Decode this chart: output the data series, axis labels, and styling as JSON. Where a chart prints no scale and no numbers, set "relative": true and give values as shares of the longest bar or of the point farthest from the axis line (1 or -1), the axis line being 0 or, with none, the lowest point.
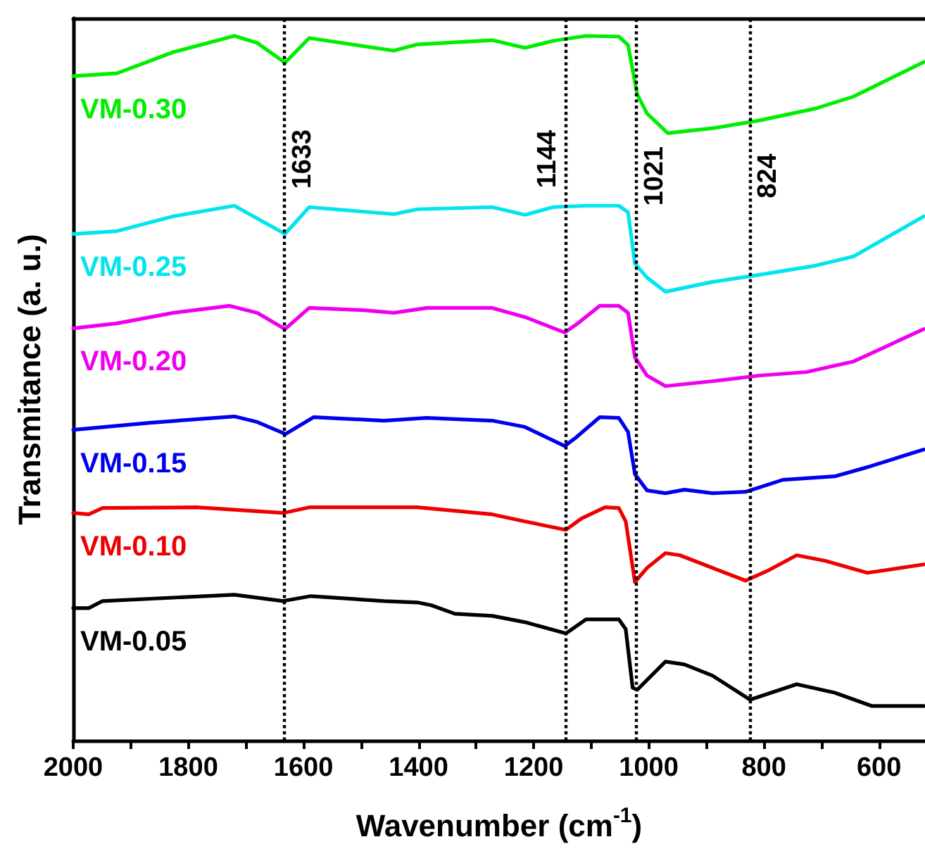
{
  "chart_data": {
    "type": "line",
    "xlabel": "Wavenumber (cm$^{-1}$)",
    "ylabel": "Transmitance (a. u.)",
    "relative": true,
    "xlim": [
      2000,
      520
    ],
    "xticks": [
      2000,
      {
        "value": 1900,
        "label": null
      },
      1800,
      {
        "value": 1700,
        "label": null
      },
      1600,
      {
        "value": 1500,
        "label": null
      },
      1400,
      {
        "value": 1300,
        "label": null
      },
      1200,
      {
        "value": 1100,
        "label": null
      },
      1000,
      {
        "value": 900,
        "label": null
      },
      800,
      {
        "value": 700,
        "label": null
      },
      600
    ],
    "grid": false,
    "legend": false,
    "marker": "none",
    "line_style": "solid",
    "series": [
      {
        "name": "VM-0.30",
        "color": "#00ee00",
        "x": [
          2000,
          1924,
          1826,
          1720,
          1680,
          1632,
          1590,
          1541,
          1443,
          1402,
          1272,
          1215,
          1166,
          1109,
          1052,
          1036,
          1020,
          1003,
          967,
          889,
          808,
          710,
          644,
          522
        ],
        "values": [
          0.943,
          0.947,
          0.977,
          1.0,
          0.99,
          0.962,
          0.997,
          0.991,
          0.979,
          0.988,
          0.994,
          0.983,
          0.993,
          1.0,
          0.999,
          0.987,
          0.917,
          0.89,
          0.862,
          0.869,
          0.88,
          0.897,
          0.914,
          0.963
        ]
      },
      {
        "name": "VM-0.25",
        "color": "#00e5ee",
        "x": [
          2000,
          1924,
          1826,
          1720,
          1632,
          1590,
          1443,
          1402,
          1272,
          1215,
          1166,
          1109,
          1052,
          1036,
          1024,
          1003,
          971,
          889,
          808,
          710,
          644,
          522
        ],
        "values": [
          0.719,
          0.723,
          0.744,
          0.759,
          0.719,
          0.757,
          0.747,
          0.754,
          0.757,
          0.746,
          0.757,
          0.759,
          0.759,
          0.75,
          0.677,
          0.657,
          0.637,
          0.651,
          0.661,
          0.674,
          0.687,
          0.744
        ]
      },
      {
        "name": "VM-0.20",
        "color": "#ee00ee",
        "x": [
          2000,
          1924,
          1826,
          1728,
          1680,
          1632,
          1590,
          1500,
          1443,
          1385,
          1272,
          1215,
          1146,
          1125,
          1085,
          1052,
          1036,
          1024,
          1003,
          971,
          889,
          808,
          726,
          644,
          522
        ],
        "values": [
          0.585,
          0.592,
          0.607,
          0.617,
          0.607,
          0.584,
          0.614,
          0.611,
          0.607,
          0.614,
          0.614,
          0.601,
          0.579,
          0.591,
          0.617,
          0.617,
          0.607,
          0.544,
          0.518,
          0.503,
          0.51,
          0.518,
          0.523,
          0.538,
          0.584
        ]
      },
      {
        "name": "VM-0.15",
        "color": "#0000ee",
        "x": [
          2000,
          1867,
          1720,
          1680,
          1631,
          1582,
          1460,
          1386,
          1272,
          1215,
          1146,
          1125,
          1085,
          1052,
          1036,
          1024,
          1003,
          971,
          938,
          889,
          832,
          767,
          677,
          620,
          522
        ],
        "values": [
          0.441,
          0.451,
          0.46,
          0.452,
          0.435,
          0.459,
          0.454,
          0.458,
          0.454,
          0.445,
          0.418,
          0.431,
          0.459,
          0.458,
          0.438,
          0.378,
          0.355,
          0.351,
          0.356,
          0.351,
          0.353,
          0.37,
          0.375,
          0.388,
          0.413
        ]
      },
      {
        "name": "VM-0.10",
        "color": "#ee0000",
        "x": [
          2000,
          1973,
          1949,
          1786,
          1635,
          1590,
          1402,
          1272,
          1215,
          1144,
          1117,
          1076,
          1052,
          1040,
          1024,
          1003,
          971,
          946,
          889,
          832,
          791,
          743,
          693,
          620,
          522
        ],
        "values": [
          0.323,
          0.321,
          0.33,
          0.331,
          0.323,
          0.331,
          0.331,
          0.321,
          0.311,
          0.299,
          0.315,
          0.331,
          0.33,
          0.311,
          0.225,
          0.245,
          0.266,
          0.263,
          0.245,
          0.227,
          0.242,
          0.263,
          0.255,
          0.238,
          0.25
        ]
      },
      {
        "name": "VM-0.05",
        "color": "#000000",
        "x": [
          2000,
          1973,
          1949,
          1720,
          1635,
          1587,
          1460,
          1402,
          1378,
          1337,
          1272,
          1215,
          1144,
          1109,
          1052,
          1040,
          1028,
          1020,
          971,
          938,
          889,
          824,
          743,
          677,
          612,
          522
        ],
        "values": [
          0.188,
          0.188,
          0.198,
          0.207,
          0.198,
          0.205,
          0.198,
          0.196,
          0.192,
          0.18,
          0.177,
          0.168,
          0.152,
          0.172,
          0.172,
          0.158,
          0.075,
          0.072,
          0.112,
          0.108,
          0.092,
          0.058,
          0.08,
          0.068,
          0.049,
          0.049
        ]
      }
    ],
    "ref_lines": [
      {
        "axis": "x",
        "value": 1633,
        "label": "1633",
        "color": "#000000",
        "line_style": "dotted"
      },
      {
        "axis": "x",
        "value": 1144,
        "label": "1144",
        "color": "#000000",
        "line_style": "dotted"
      },
      {
        "axis": "x",
        "value": 1021,
        "label": "1021",
        "color": "#000000",
        "line_style": "dotted"
      },
      {
        "axis": "x",
        "value": 824,
        "label": "824",
        "color": "#000000",
        "line_style": "dotted"
      }
    ]
  }
}
